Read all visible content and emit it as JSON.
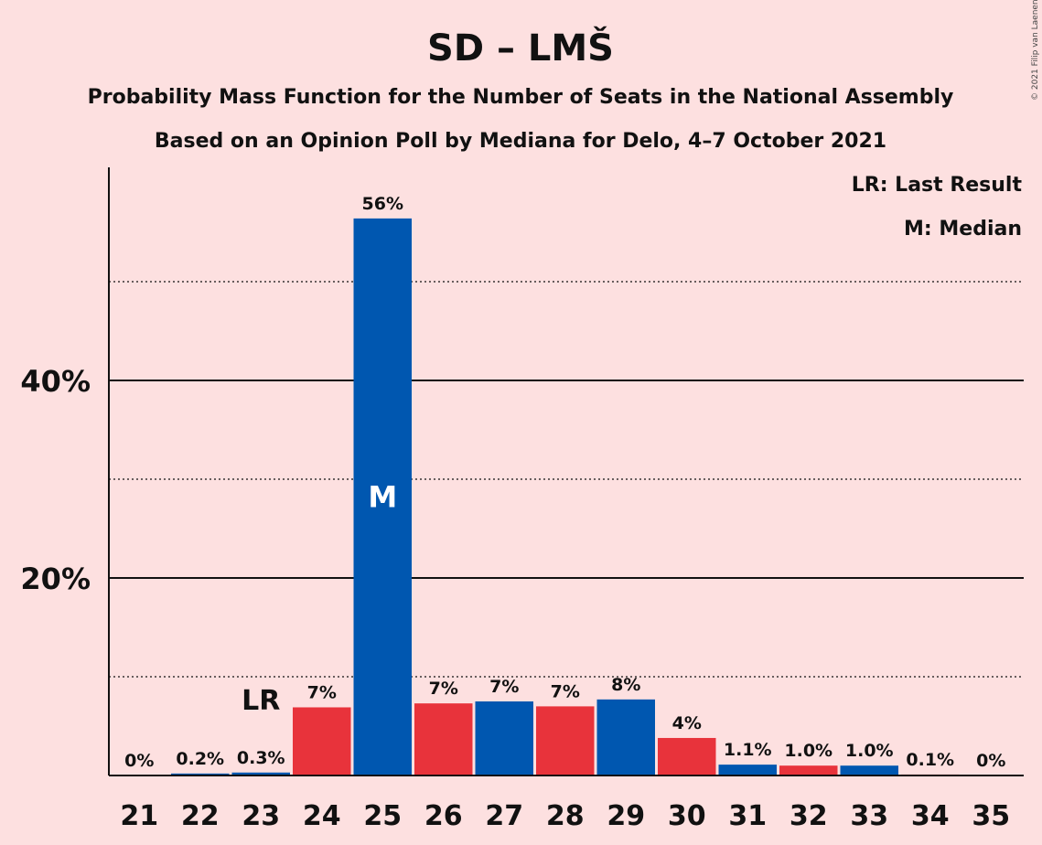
{
  "chart_data": {
    "type": "bar",
    "title": "SD – LMŠ",
    "subtitle": "Probability Mass Function for the Number of Seats in the National Assembly",
    "subtitle2": "Based on an Opinion Poll by Mediana for Delo, 4–7 October 2021",
    "copyright": "© 2021 Filip van Laenen",
    "legend": {
      "placement": "top-right",
      "items": [
        "LR: Last Result",
        "M: Median"
      ]
    },
    "lr_label": "LR",
    "median_label": "M",
    "last_result_seat": 23,
    "median_seat": 25,
    "categories": [
      "21",
      "22",
      "23",
      "24",
      "25",
      "26",
      "27",
      "28",
      "29",
      "30",
      "31",
      "32",
      "33",
      "34",
      "35"
    ],
    "values": [
      0,
      0.2,
      0.3,
      6.9,
      56.4,
      7.3,
      7.5,
      7.0,
      7.7,
      3.8,
      1.1,
      1.0,
      1.0,
      0.1,
      0
    ],
    "data_labels": [
      "0%",
      "0.2%",
      "0.3%",
      "7%",
      "56%",
      "7%",
      "7%",
      "7%",
      "8%",
      "4%",
      "1.1%",
      "1.0%",
      "1.0%",
      "0.1%",
      "0%"
    ],
    "bar_colors": [
      "#e8333b",
      "#0057b0",
      "#0057b0",
      "#e8333b",
      "#0057b0",
      "#e8333b",
      "#0057b0",
      "#e8333b",
      "#0057b0",
      "#e8333b",
      "#0057b0",
      "#e8333b",
      "#0057b0",
      "#e8333b",
      "#0057b0"
    ],
    "yticks": [
      {
        "value": 20,
        "label": "20%"
      },
      {
        "value": 40,
        "label": "40%"
      }
    ],
    "minor_gridlines": [
      10,
      30,
      50
    ],
    "ylim": [
      0,
      61
    ],
    "grid": true
  }
}
